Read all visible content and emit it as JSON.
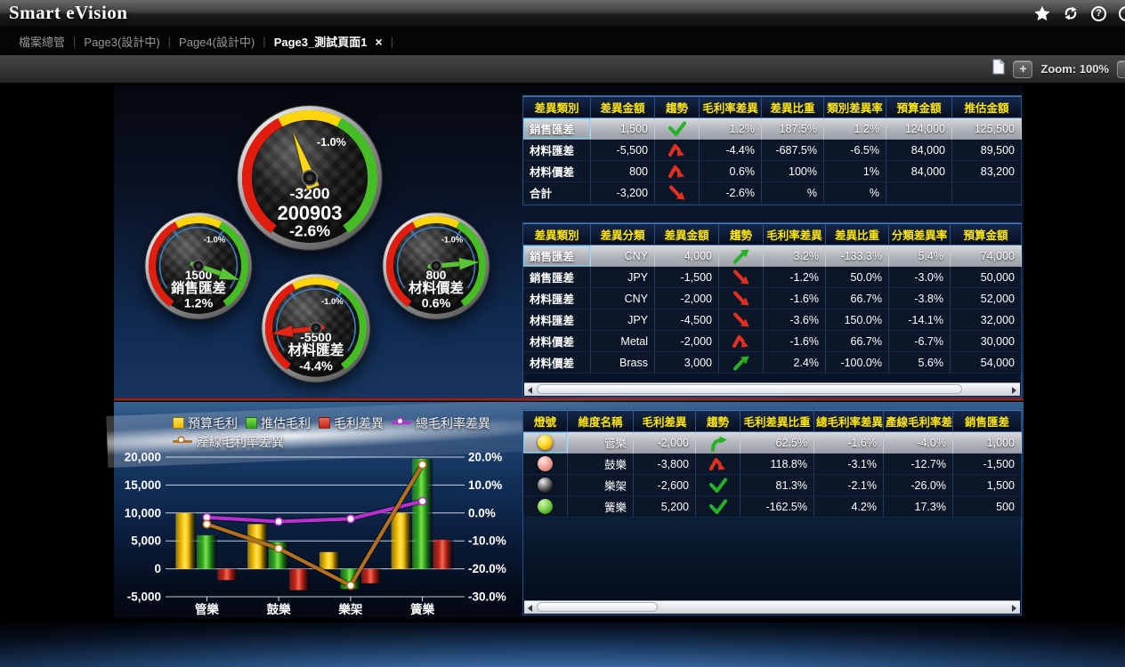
{
  "header": {
    "title": "Smart eVision",
    "help_glyph": "?"
  },
  "tab_separator": "|",
  "tabs": [
    {
      "label": "檔案總管",
      "active": false
    },
    {
      "label": "Page3(設計中)",
      "active": false
    },
    {
      "label": "Page4(設計中)",
      "active": false
    },
    {
      "label": "Page3_測試頁面1",
      "active": true,
      "close_glyph": "×"
    }
  ],
  "toolbar": {
    "zoom_in_label": "+",
    "zoom_label": "Zoom: 100%"
  },
  "gauges": [
    {
      "id": "gmain",
      "size": "large",
      "values": [
        "-3200",
        "200903",
        "-2.6%"
      ],
      "range_label": "-1.0%",
      "needle_color": "#ffd918",
      "needle_angle": 110
    },
    {
      "id": "gsales",
      "size": "small",
      "values": [
        "1500",
        "銷售匯差",
        "1.2%"
      ],
      "range_label": "-1.0%",
      "needle_color": "#5bc436",
      "needle_angle": -19
    },
    {
      "id": "gmatfx",
      "size": "small",
      "values": [
        "-5500",
        "材料匯差",
        "-4.4%"
      ],
      "range_label": "-1.0%",
      "needle_color": "#e32615",
      "needle_angle": 187
    },
    {
      "id": "gmatpr",
      "size": "small",
      "values": [
        "800",
        "材料價差",
        "0.6%"
      ],
      "range_label": "-1.0%",
      "needle_color": "#5bc436",
      "needle_angle": 5
    }
  ],
  "tables": {
    "category": {
      "headers": [
        "差異類別",
        "差異金額",
        "趨勢",
        "毛利率差異",
        "差異比重",
        "類別差異率",
        "預算金額",
        "推估金額"
      ],
      "rows": [
        {
          "selected": true,
          "cells": [
            "銷售匯差",
            "1,500",
            {
              "trend": "green-check"
            },
            "1.2%",
            "187.5%",
            "1.2%",
            "124,000",
            "125,500"
          ]
        },
        {
          "cells": [
            "材料匯差",
            "-5,500",
            {
              "trend": "red-peak"
            },
            "-4.4%",
            "-687.5%",
            "-6.5%",
            "84,000",
            "89,500"
          ]
        },
        {
          "cells": [
            "材料價差",
            "800",
            {
              "trend": "red-peak"
            },
            "0.6%",
            "100%",
            "1%",
            "84,000",
            "83,200"
          ]
        },
        {
          "cells": [
            "合計",
            "-3,200",
            {
              "trend": "red-down"
            },
            "-2.6%",
            "%",
            "%",
            "",
            ""
          ]
        }
      ]
    },
    "classes": {
      "headers": [
        "差異類別",
        "差異分類",
        "差異金額",
        "趨勢",
        "毛利率差異",
        "差異比重",
        "分類差異率",
        "預算金額"
      ],
      "rows": [
        {
          "selected": true,
          "cells": [
            "銷售匯差",
            "CNY",
            "4,000",
            {
              "trend": "green-up"
            },
            "3.2%",
            "-133.3%",
            "5.4%",
            "74,000"
          ]
        },
        {
          "cells": [
            "銷售匯差",
            "JPY",
            "-1,500",
            {
              "trend": "red-down"
            },
            "-1.2%",
            "50.0%",
            "-3.0%",
            "50,000"
          ]
        },
        {
          "cells": [
            "材料匯差",
            "CNY",
            "-2,000",
            {
              "trend": "red-down"
            },
            "-1.6%",
            "66.7%",
            "-3.8%",
            "52,000"
          ]
        },
        {
          "cells": [
            "材料匯差",
            "JPY",
            "-4,500",
            {
              "trend": "red-down"
            },
            "-3.6%",
            "150.0%",
            "-14.1%",
            "32,000"
          ]
        },
        {
          "cells": [
            "材料價差",
            "Metal",
            "-2,000",
            {
              "trend": "red-peak"
            },
            "-1.6%",
            "66.7%",
            "-6.7%",
            "30,000"
          ]
        },
        {
          "cells": [
            "材料價差",
            "Brass",
            "3,000",
            {
              "trend": "green-up"
            },
            "2.4%",
            "-100.0%",
            "5.6%",
            "54,000"
          ]
        }
      ]
    },
    "dimensions": {
      "headers": [
        "燈號",
        "維度名稱",
        "毛利差異",
        "趨勢",
        "毛利差異比重",
        "總毛利率差異",
        "產線毛利率差!",
        "銷售匯差"
      ],
      "rows": [
        {
          "selected": true,
          "cells": [
            {
              "light": "yellow"
            },
            "管樂",
            "-2,000",
            {
              "trend": "green-turn-up"
            },
            "62.5%",
            "-1.6%",
            "-4.0%",
            "1,000"
          ]
        },
        {
          "cells": [
            {
              "light": "pink"
            },
            "鼓樂",
            "-3,800",
            {
              "trend": "red-peak"
            },
            "118.8%",
            "-3.1%",
            "-12.7%",
            "-1,500"
          ]
        },
        {
          "cells": [
            {
              "light": "black"
            },
            "樂架",
            "-2,600",
            {
              "trend": "green-check"
            },
            "81.3%",
            "-2.1%",
            "-26.0%",
            "1,500"
          ]
        },
        {
          "cells": [
            {
              "light": "green"
            },
            "簧樂",
            "5,200",
            {
              "trend": "green-check"
            },
            "-162.5%",
            "4.2%",
            "17.3%",
            "500"
          ]
        }
      ]
    }
  },
  "chart_data": {
    "type": "bar+line combo",
    "categories": [
      "管樂",
      "鼓樂",
      "樂架",
      "簧樂"
    ],
    "series": [
      {
        "name": "預算毛利",
        "type": "bar",
        "axis": "left",
        "color": "#f2bb00",
        "color_light": "#ffe45c",
        "values": [
          10000,
          8000,
          3000,
          10000
        ]
      },
      {
        "name": "推估毛利",
        "type": "bar",
        "axis": "left",
        "color": "#2fa51c",
        "color_light": "#7ee04f",
        "values": [
          6000,
          4800,
          -3600,
          19700
        ]
      },
      {
        "name": "毛利差異",
        "type": "bar",
        "axis": "left",
        "color": "#c22418",
        "color_light": "#ef6a55",
        "values": [
          -2000,
          -3800,
          -2600,
          5200
        ]
      },
      {
        "name": "總毛利率差異",
        "type": "line",
        "axis": "right",
        "color": "#bb2fd0",
        "values": [
          -1.6,
          -3.1,
          -2.1,
          4.2
        ]
      },
      {
        "name": "產線毛利率差異",
        "type": "line",
        "axis": "right",
        "color": "#b5701f",
        "values": [
          -4.0,
          -12.7,
          -26.0,
          17.3
        ]
      }
    ],
    "left_axis": {
      "min": -5000,
      "max": 20000,
      "tick_labels": [
        "20,000",
        "15,000",
        "10,000",
        "5,000",
        "0",
        "-5,000"
      ],
      "tick_values": [
        20000,
        15000,
        10000,
        5000,
        0,
        -5000
      ]
    },
    "right_axis": {
      "min": -30,
      "max": 20,
      "tick_labels": [
        "20.0%",
        "10.0%",
        "0.0%",
        "-10.0%",
        "-20.0%",
        "-30.0%"
      ],
      "tick_values": [
        20,
        10,
        0,
        -10,
        -20,
        -30
      ]
    },
    "grid": true,
    "legend_position": "top-left"
  },
  "colors": {
    "accent_yellow": "#ffe60a",
    "selected_row_border": "#6fd2ff",
    "divider_red": "#a33232",
    "trend_green": "#27b127",
    "trend_red": "#e5301f",
    "gauge_band_red": "#e11d10",
    "gauge_band_yellow": "#ffd60c",
    "gauge_band_green": "#47bd25"
  }
}
